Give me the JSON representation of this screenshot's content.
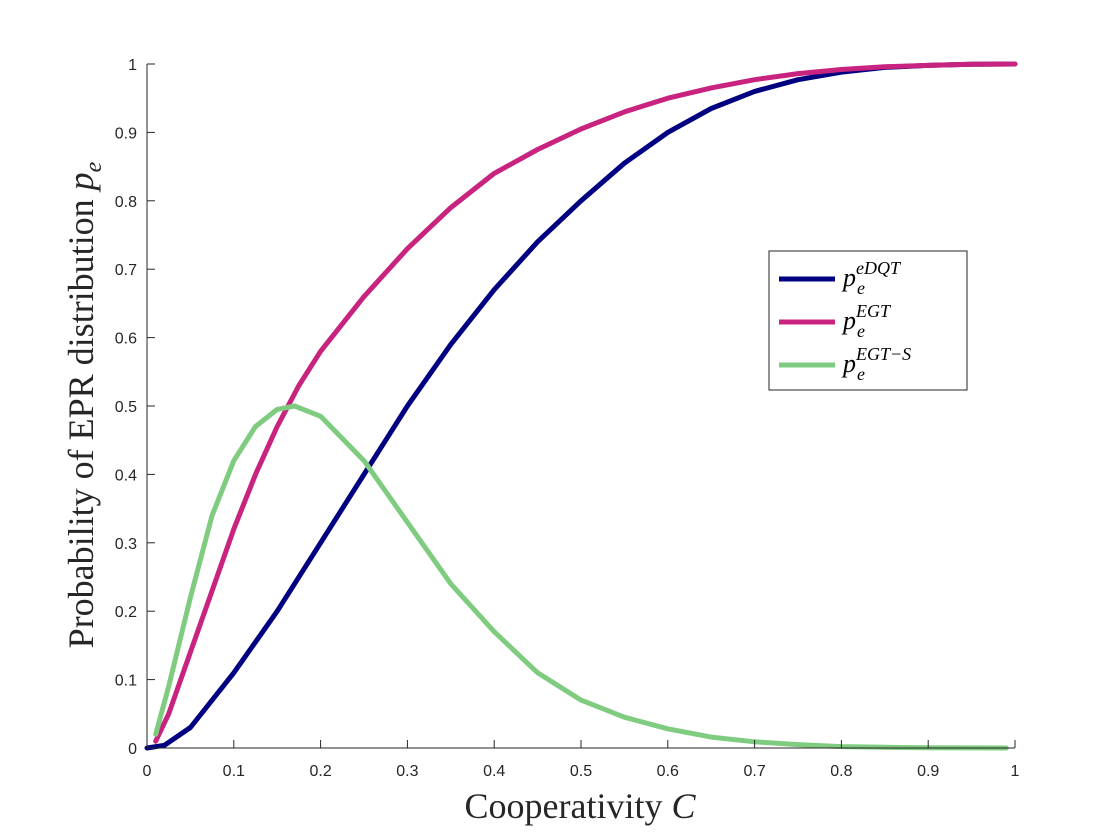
{
  "chart_data": {
    "type": "line",
    "xlabel": "Cooperativity C",
    "xlabel_parts": {
      "text": "Cooperativity ",
      "var": "C"
    },
    "ylabel": "Probability of EPR distribution p_e",
    "ylabel_parts": {
      "text": "Probability of EPR distribution ",
      "var": "p",
      "sub": "e"
    },
    "xlim": [
      0,
      1
    ],
    "ylim": [
      0,
      1
    ],
    "x_ticks": [
      0,
      0.1,
      0.2,
      0.3,
      0.4,
      0.5,
      0.6,
      0.7,
      0.8,
      0.9,
      1
    ],
    "y_ticks": [
      0,
      0.1,
      0.2,
      0.3,
      0.4,
      0.5,
      0.6,
      0.7,
      0.8,
      0.9,
      1
    ],
    "x_tick_labels": [
      "0",
      "0.1",
      "0.2",
      "0.3",
      "0.4",
      "0.5",
      "0.6",
      "0.7",
      "0.8",
      "0.9",
      "1"
    ],
    "y_tick_labels": [
      "0",
      "0.1",
      "0.2",
      "0.3",
      "0.4",
      "0.5",
      "0.6",
      "0.7",
      "0.8",
      "0.9",
      "1"
    ],
    "grid": false,
    "legend_position": "right",
    "series": [
      {
        "name": "p_e^{eDQT}",
        "legend_base": "p",
        "legend_sub": "e",
        "legend_sup": "eDQT",
        "color": "#000080",
        "x": [
          0,
          0.02,
          0.05,
          0.1,
          0.15,
          0.2,
          0.25,
          0.3,
          0.35,
          0.4,
          0.45,
          0.5,
          0.55,
          0.6,
          0.65,
          0.7,
          0.75,
          0.8,
          0.85,
          0.9,
          0.95,
          1
        ],
        "y": [
          0,
          0.004,
          0.03,
          0.11,
          0.2,
          0.3,
          0.4,
          0.5,
          0.59,
          0.67,
          0.74,
          0.8,
          0.855,
          0.9,
          0.935,
          0.96,
          0.977,
          0.988,
          0.995,
          0.998,
          0.9995,
          1
        ]
      },
      {
        "name": "p_e^{EGT}",
        "legend_base": "p",
        "legend_sub": "e",
        "legend_sup": "EGT",
        "color": "#C8237F",
        "x": [
          0.01,
          0.025,
          0.05,
          0.075,
          0.1,
          0.125,
          0.15,
          0.175,
          0.2,
          0.25,
          0.3,
          0.35,
          0.4,
          0.45,
          0.5,
          0.55,
          0.6,
          0.65,
          0.7,
          0.75,
          0.8,
          0.85,
          0.9,
          0.95,
          1
        ],
        "y": [
          0.01,
          0.05,
          0.14,
          0.23,
          0.32,
          0.4,
          0.47,
          0.53,
          0.58,
          0.66,
          0.73,
          0.79,
          0.84,
          0.875,
          0.905,
          0.93,
          0.95,
          0.965,
          0.977,
          0.986,
          0.992,
          0.996,
          0.998,
          0.9995,
          1
        ]
      },
      {
        "name": "p_e^{EGT-S}",
        "legend_base": "p",
        "legend_sub": "e",
        "legend_sup": "EGT−S",
        "color": "#7FCC80",
        "x": [
          0.01,
          0.025,
          0.05,
          0.075,
          0.1,
          0.125,
          0.15,
          0.17,
          0.2,
          0.25,
          0.3,
          0.35,
          0.4,
          0.45,
          0.5,
          0.55,
          0.6,
          0.65,
          0.7,
          0.75,
          0.8,
          0.85,
          0.9,
          0.95,
          0.99
        ],
        "y": [
          0.02,
          0.09,
          0.22,
          0.34,
          0.42,
          0.47,
          0.495,
          0.5,
          0.485,
          0.42,
          0.33,
          0.24,
          0.17,
          0.11,
          0.07,
          0.045,
          0.028,
          0.016,
          0.009,
          0.005,
          0.002,
          0.001,
          0.0005,
          0.0001,
          0
        ]
      }
    ]
  }
}
